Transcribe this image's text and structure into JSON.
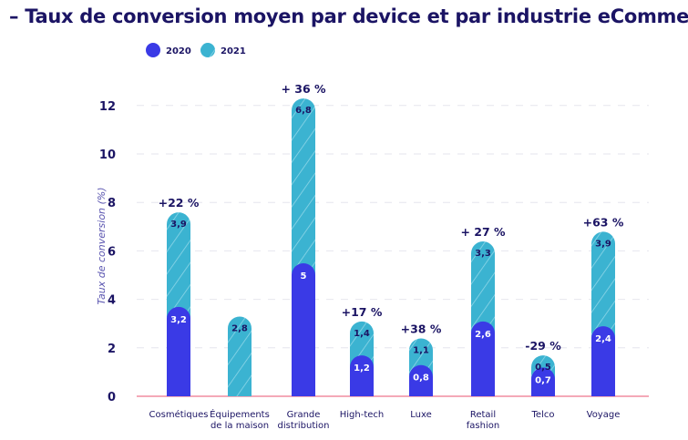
{
  "title": "– Taux de conversion moyen par device et par industrie eCommerce",
  "chart_data": {
    "type": "bar",
    "title": "– Taux de conversion moyen par device et par industrie eCommerce",
    "xlabel": "",
    "ylabel": "Taux de conversion (%)",
    "ylim": [
      0,
      12
    ],
    "yticks": [
      0,
      2,
      4,
      6,
      8,
      10,
      12
    ],
    "grid": true,
    "legend": "top-left",
    "categories": [
      [
        "Cosmétiques"
      ],
      [
        "Équipements",
        "de la maison"
      ],
      [
        "Grande",
        "distribution"
      ],
      [
        "High-tech"
      ],
      [
        "Luxe"
      ],
      [
        "Retail",
        "fashion"
      ],
      [
        "Telco"
      ],
      [
        "Voyage"
      ]
    ],
    "series": [
      {
        "name": "2020",
        "color": "#3a3ae6",
        "values": [
          3.2,
          null,
          5,
          1.2,
          0.8,
          2.6,
          0.7,
          2.4
        ],
        "labels": [
          "3,2",
          "",
          "5",
          "1,2",
          "0,8",
          "2,6",
          "0,7",
          "2,4"
        ]
      },
      {
        "name": "2021",
        "color": "#3bb3d1",
        "values": [
          3.9,
          2.8,
          6.8,
          1.4,
          1.1,
          3.3,
          0.5,
          3.9
        ],
        "labels": [
          "3,9",
          "2,8",
          "6,8",
          "1,4",
          "1,1",
          "3,3",
          "0,5",
          "3,9"
        ]
      }
    ],
    "annotations": [
      "+22 %",
      "",
      "+ 36 %",
      "+17 %",
      "+38 %",
      "+ 27 %",
      "-29 %",
      "+63 %"
    ]
  }
}
